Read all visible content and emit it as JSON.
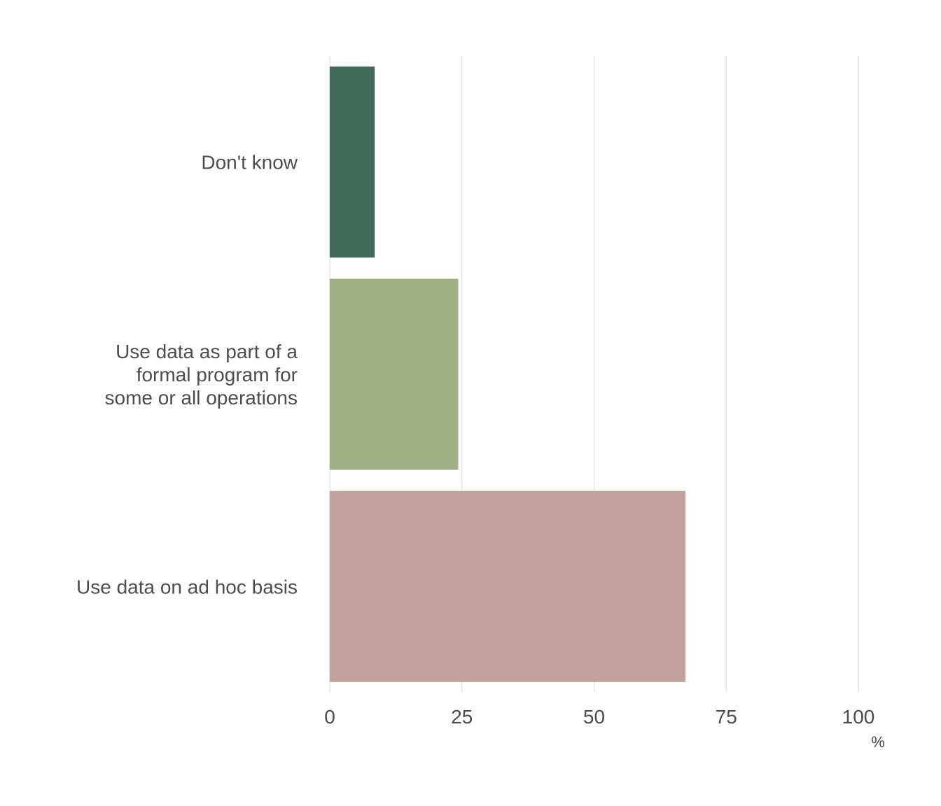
{
  "chart_data": {
    "type": "bar",
    "orientation": "horizontal",
    "categories": [
      "Don't know",
      "Use data as part of a formal program for some or all operations",
      "Use data on ad hoc basis"
    ],
    "category_lines": [
      [
        "Don't know"
      ],
      [
        "Use data as part of a",
        "formal program for",
        "some or all operations"
      ],
      [
        "Use data on ad hoc basis"
      ]
    ],
    "values": [
      8.5,
      24.3,
      67.3
    ],
    "colors": [
      "#426b5b",
      "#a0af84",
      "#c3a19c"
    ],
    "xlim": [
      0,
      100
    ],
    "xticks": [
      0,
      25,
      50,
      75,
      100
    ],
    "xlabel": "%",
    "title": "",
    "ylabel": "",
    "grid": "vertical"
  }
}
